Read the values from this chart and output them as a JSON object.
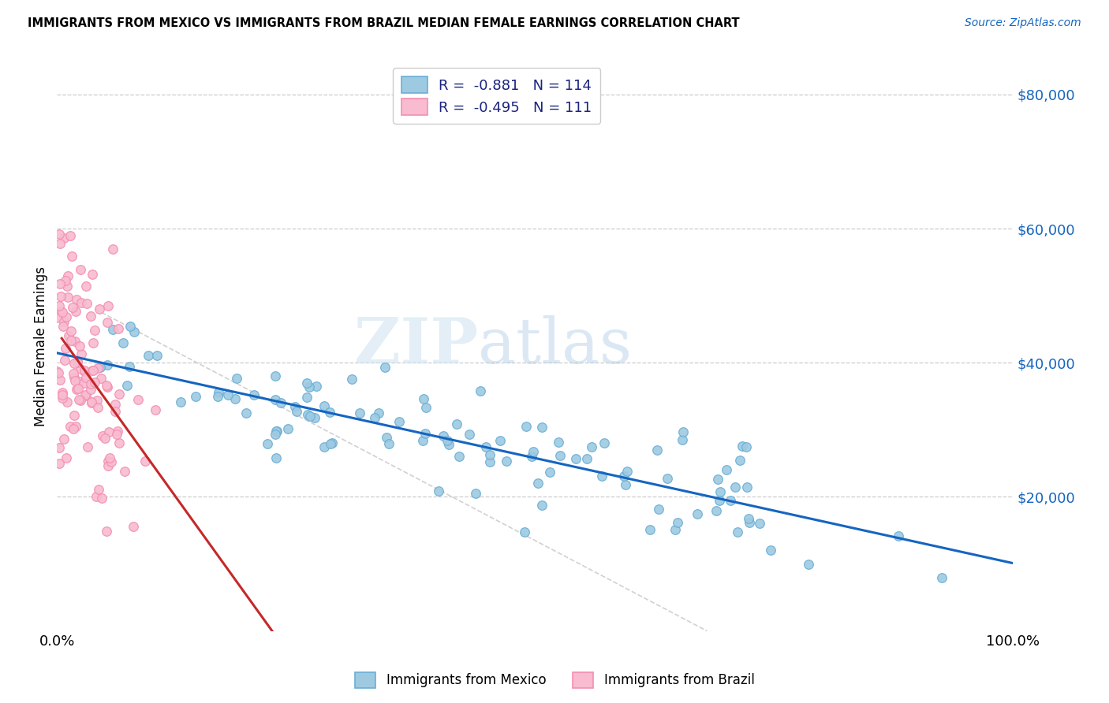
{
  "title": "IMMIGRANTS FROM MEXICO VS IMMIGRANTS FROM BRAZIL MEDIAN FEMALE EARNINGS CORRELATION CHART",
  "source": "Source: ZipAtlas.com",
  "ylabel": "Median Female Earnings",
  "xlim": [
    0,
    1.0
  ],
  "ylim": [
    0,
    85000
  ],
  "xtick_labels": [
    "0.0%",
    "100.0%"
  ],
  "ytick_labels": [
    "$20,000",
    "$40,000",
    "$60,000",
    "$80,000"
  ],
  "ytick_values": [
    20000,
    40000,
    60000,
    80000
  ],
  "mexico_color": "#6baed6",
  "mexico_color_fill": "#9ecae1",
  "brazil_color": "#f48fb1",
  "brazil_color_fill": "#f8bbd0",
  "trend_mexico_color": "#1565c0",
  "trend_brazil_color": "#c62828",
  "trend_dashed_color": "#cccccc",
  "watermark_zip": "ZIP",
  "watermark_atlas": "atlas",
  "background_color": "#ffffff",
  "N_mexico": 114,
  "N_brazil": 111,
  "mexico_seed": 7,
  "brazil_seed": 13,
  "legend_line1": "R =  -0.881   N = 114",
  "legend_line2": "R =  -0.495   N = 111"
}
